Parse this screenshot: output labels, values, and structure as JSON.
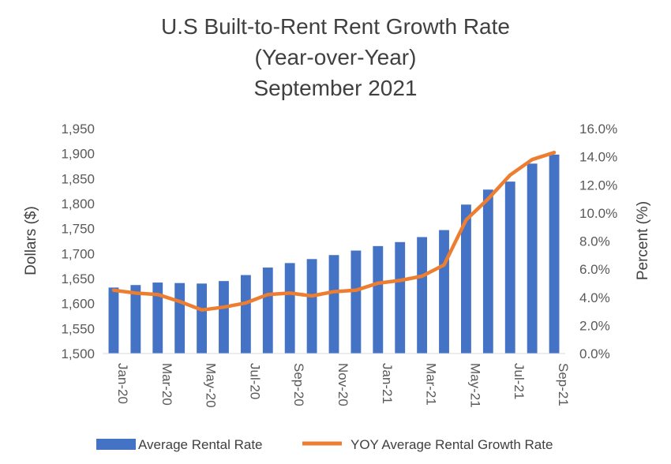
{
  "chart_data": {
    "type": "bar",
    "title": [
      "U.S Built-to-Rent Rent Growth Rate",
      "(Year-over-Year)",
      "September 2021"
    ],
    "ylabel_left": "Dollars ($)",
    "ylabel_right": "Percent (%)",
    "ylim_left": [
      1500,
      1950
    ],
    "ylim_right": [
      0,
      16
    ],
    "yticks_left": [
      "1,500",
      "1,550",
      "1,600",
      "1,650",
      "1,700",
      "1,750",
      "1,800",
      "1,850",
      "1,900",
      "1,950"
    ],
    "yticks_right": [
      "0.0%",
      "2.0%",
      "4.0%",
      "6.0%",
      "8.0%",
      "10.0%",
      "12.0%",
      "14.0%",
      "16.0%"
    ],
    "categories": [
      "Jan-20",
      "Feb-20",
      "Mar-20",
      "Apr-20",
      "May-20",
      "Jun-20",
      "Jul-20",
      "Aug-20",
      "Sep-20",
      "Oct-20",
      "Nov-20",
      "Dec-20",
      "Jan-21",
      "Feb-21",
      "Mar-21",
      "Apr-21",
      "May-21",
      "Jun-21",
      "Jul-21",
      "Aug-21",
      "Sep-21"
    ],
    "x_tick_labels": [
      "Jan-20",
      "Mar-20",
      "May-20",
      "Jul-20",
      "Sep-20",
      "Nov-20",
      "Jan-21",
      "Mar-21",
      "May-21",
      "Jul-21",
      "Sep-21"
    ],
    "series": [
      {
        "name": "Average Rental Rate",
        "type": "bar",
        "axis": "left",
        "color": "#4472C4",
        "values": [
          1632,
          1637,
          1642,
          1641,
          1640,
          1645,
          1657,
          1672,
          1681,
          1689,
          1697,
          1706,
          1715,
          1723,
          1733,
          1747,
          1798,
          1828,
          1844,
          1880,
          1898
        ]
      },
      {
        "name": "YOY Average Rental Growth Rate",
        "type": "line",
        "axis": "right",
        "color": "#ED7D31",
        "values": [
          4.5,
          4.3,
          4.2,
          3.7,
          3.1,
          3.3,
          3.6,
          4.2,
          4.3,
          4.1,
          4.4,
          4.5,
          5.0,
          5.2,
          5.5,
          6.3,
          9.5,
          11.0,
          12.7,
          13.8,
          14.3
        ]
      }
    ],
    "legend": "bottom",
    "grid": false
  }
}
